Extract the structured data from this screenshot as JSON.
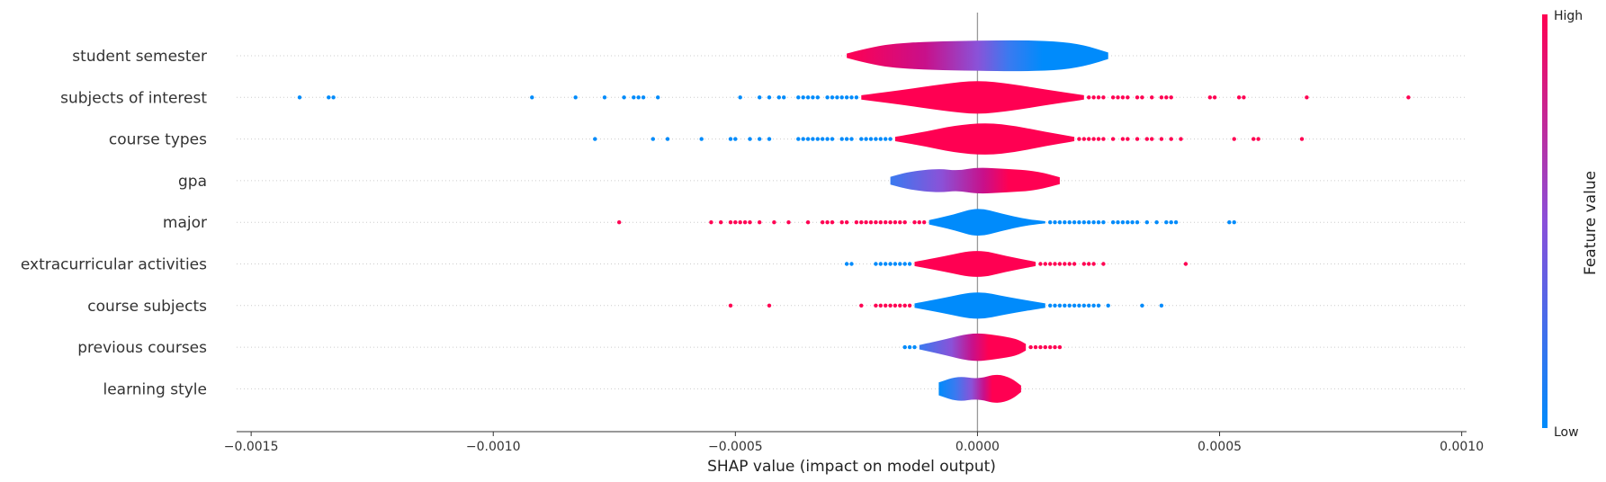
{
  "chart_data": {
    "type": "violin-summary",
    "xlabel": "SHAP value (impact on model output)",
    "xlim": [
      -0.00153,
      0.00101
    ],
    "xticks": [
      {
        "value": -0.0015,
        "label": "−0.0015"
      },
      {
        "value": -0.001,
        "label": "−0.0010"
      },
      {
        "value": -0.0005,
        "label": "−0.0005"
      },
      {
        "value": 0.0,
        "label": "0.0000"
      },
      {
        "value": 0.0005,
        "label": "0.0005"
      },
      {
        "value": 0.001,
        "label": "0.0010"
      }
    ],
    "colorbar": {
      "label": "Feature value",
      "high_label": "High",
      "low_label": "Low",
      "high_color": "#ff0052",
      "low_color": "#008bfb"
    },
    "features": [
      {
        "name": "student semester",
        "body": {
          "min": -0.00027,
          "max": 0.00027
        },
        "gradient": [
          [
            0,
            "#ff0052"
          ],
          [
            0.3,
            "#c8108a"
          ],
          [
            0.5,
            "#8a52d8"
          ],
          [
            0.62,
            "#3a7af0"
          ],
          [
            0.75,
            "#008bfb"
          ],
          [
            1,
            "#008bfb"
          ]
        ],
        "profile": [
          [
            -0.00027,
            0.1
          ],
          [
            -0.00023,
            0.33
          ],
          [
            -0.00018,
            0.55
          ],
          [
            -0.0001,
            0.66
          ],
          [
            0.0,
            0.7
          ],
          [
            8e-05,
            0.72
          ],
          [
            0.00016,
            0.68
          ],
          [
            0.00022,
            0.5
          ],
          [
            0.00027,
            0.15
          ]
        ],
        "high_points": [],
        "low_points": []
      },
      {
        "name": "subjects of interest",
        "body": {
          "min": -0.00024,
          "max": 0.00022
        },
        "gradient": [
          [
            0,
            "#ff0052"
          ],
          [
            1,
            "#ff0052"
          ]
        ],
        "profile": [
          [
            -0.00024,
            0.1
          ],
          [
            -0.00016,
            0.33
          ],
          [
            -7e-05,
            0.62
          ],
          [
            0.0,
            0.8
          ],
          [
            7e-05,
            0.62
          ],
          [
            0.00015,
            0.33
          ],
          [
            0.00022,
            0.1
          ]
        ],
        "low_points": [
          -0.0014,
          -0.00134,
          -0.00133,
          -0.00092,
          -0.00083,
          -0.00077,
          -0.00073,
          -0.00071,
          -0.0007,
          -0.00069,
          -0.00066,
          -0.00049,
          -0.00045,
          -0.00043,
          -0.00041,
          -0.0004,
          -0.00037,
          -0.00036,
          -0.00035,
          -0.00034,
          -0.00033,
          -0.00031,
          -0.0003,
          -0.00029,
          -0.00028,
          -0.00027,
          -0.00026,
          -0.00025
        ],
        "high_points": [
          0.00023,
          0.00024,
          0.00025,
          0.00026,
          0.00028,
          0.00029,
          0.0003,
          0.00031,
          0.00033,
          0.00034,
          0.00036,
          0.00038,
          0.00039,
          0.0004,
          0.00048,
          0.00049,
          0.00054,
          0.00055,
          0.00068,
          0.00089
        ]
      },
      {
        "name": "course types",
        "body": {
          "min": -0.00017,
          "max": 0.0002
        },
        "gradient": [
          [
            0,
            "#ff0052"
          ],
          [
            1,
            "#ff0052"
          ]
        ],
        "profile": [
          [
            -0.00017,
            0.1
          ],
          [
            -0.00011,
            0.33
          ],
          [
            -5e-05,
            0.62
          ],
          [
            2e-05,
            0.76
          ],
          [
            8e-05,
            0.6
          ],
          [
            0.00014,
            0.33
          ],
          [
            0.0002,
            0.1
          ]
        ],
        "low_points": [
          -0.00079,
          -0.00067,
          -0.00064,
          -0.00057,
          -0.00051,
          -0.0005,
          -0.00047,
          -0.00045,
          -0.00043,
          -0.00037,
          -0.00036,
          -0.00035,
          -0.00034,
          -0.00033,
          -0.00032,
          -0.00031,
          -0.0003,
          -0.00028,
          -0.00027,
          -0.00026,
          -0.00024,
          -0.00023,
          -0.00022,
          -0.00021,
          -0.0002,
          -0.00019,
          -0.00018
        ],
        "high_points": [
          0.00021,
          0.00022,
          0.00023,
          0.00024,
          0.00025,
          0.00026,
          0.00028,
          0.0003,
          0.00031,
          0.00033,
          0.00035,
          0.00036,
          0.00038,
          0.0004,
          0.00042,
          0.00053,
          0.00057,
          0.00058,
          0.00067
        ]
      },
      {
        "name": "gpa",
        "body": {
          "min": -0.00018,
          "max": 0.00017
        },
        "gradient": [
          [
            0,
            "#3a7af0"
          ],
          [
            0.3,
            "#8a52d8"
          ],
          [
            0.55,
            "#c8108a"
          ],
          [
            0.7,
            "#ff0052"
          ],
          [
            1,
            "#ff0052"
          ]
        ],
        "profile": [
          [
            -0.00018,
            0.18
          ],
          [
            -0.00014,
            0.42
          ],
          [
            -8e-05,
            0.56
          ],
          [
            -4e-05,
            0.46
          ],
          [
            0.0,
            0.62
          ],
          [
            6e-05,
            0.54
          ],
          [
            0.00012,
            0.46
          ],
          [
            0.00017,
            0.16
          ]
        ],
        "high_points": [],
        "low_points": []
      },
      {
        "name": "major",
        "body": {
          "min": -0.0001,
          "max": 0.00014
        },
        "gradient": [
          [
            0,
            "#008bfb"
          ],
          [
            1,
            "#008bfb"
          ]
        ],
        "profile": [
          [
            -0.0001,
            0.1
          ],
          [
            -5e-05,
            0.35
          ],
          [
            0.0,
            0.7
          ],
          [
            5e-05,
            0.4
          ],
          [
            0.0001,
            0.15
          ],
          [
            0.00014,
            0.05
          ]
        ],
        "high_points": [
          -0.00074,
          -0.00055,
          -0.00053,
          -0.00051,
          -0.0005,
          -0.00049,
          -0.00048,
          -0.00047,
          -0.00045,
          -0.00042,
          -0.00039,
          -0.00035,
          -0.00032,
          -0.00031,
          -0.0003,
          -0.00028,
          -0.00027,
          -0.00025,
          -0.00024,
          -0.00023,
          -0.00022,
          -0.00021,
          -0.0002,
          -0.00019,
          -0.00018,
          -0.00017,
          -0.00016,
          -0.00015,
          -0.00013,
          -0.00012,
          -0.00011
        ],
        "low_points": [
          0.00015,
          0.00016,
          0.00017,
          0.00018,
          0.00019,
          0.0002,
          0.00021,
          0.00022,
          0.00023,
          0.00024,
          0.00025,
          0.00026,
          0.00028,
          0.00029,
          0.0003,
          0.00031,
          0.00032,
          0.00033,
          0.00035,
          0.00037,
          0.00039,
          0.0004,
          0.00041,
          0.00052,
          0.00053
        ]
      },
      {
        "name": "extracurricular activities",
        "body": {
          "min": -0.00013,
          "max": 0.00012
        },
        "gradient": [
          [
            0,
            "#ff0052"
          ],
          [
            1,
            "#ff0052"
          ]
        ],
        "profile": [
          [
            -0.00013,
            0.1
          ],
          [
            -7e-05,
            0.35
          ],
          [
            0.0,
            0.68
          ],
          [
            6e-05,
            0.36
          ],
          [
            0.00012,
            0.1
          ]
        ],
        "low_points": [
          -0.00027,
          -0.00026,
          -0.00021,
          -0.0002,
          -0.00019,
          -0.00018,
          -0.00017,
          -0.00016,
          -0.00015,
          -0.00014
        ],
        "high_points": [
          0.00013,
          0.00014,
          0.00015,
          0.00016,
          0.00017,
          0.00018,
          0.00019,
          0.0002,
          0.00022,
          0.00023,
          0.00024,
          0.00026,
          0.00043
        ]
      },
      {
        "name": "course subjects",
        "body": {
          "min": -0.00013,
          "max": 0.00014
        },
        "gradient": [
          [
            0,
            "#008bfb"
          ],
          [
            1,
            "#008bfb"
          ]
        ],
        "profile": [
          [
            -0.00013,
            0.1
          ],
          [
            -7e-05,
            0.35
          ],
          [
            0.0,
            0.68
          ],
          [
            6e-05,
            0.4
          ],
          [
            0.00014,
            0.1
          ]
        ],
        "high_points": [
          -0.00051,
          -0.00043,
          -0.00024,
          -0.00021,
          -0.0002,
          -0.00019,
          -0.00018,
          -0.00017,
          -0.00016,
          -0.00015,
          -0.00014
        ],
        "low_points": [
          0.00015,
          0.00016,
          0.00017,
          0.00018,
          0.00019,
          0.0002,
          0.00021,
          0.00022,
          0.00023,
          0.00024,
          0.00025,
          0.00027,
          0.00034,
          0.00038
        ]
      },
      {
        "name": "previous courses",
        "body": {
          "min": -0.00012,
          "max": 0.0001
        },
        "gradient": [
          [
            0,
            "#3a7af0"
          ],
          [
            0.3,
            "#8a52d8"
          ],
          [
            0.5,
            "#c8108a"
          ],
          [
            0.65,
            "#ff0052"
          ],
          [
            1,
            "#ff0052"
          ]
        ],
        "profile": [
          [
            -0.00012,
            0.1
          ],
          [
            -7e-05,
            0.35
          ],
          [
            -1e-05,
            0.68
          ],
          [
            4e-05,
            0.55
          ],
          [
            8e-05,
            0.4
          ],
          [
            0.0001,
            0.15
          ]
        ],
        "low_points": [
          -0.00015,
          -0.00014,
          -0.00013
        ],
        "high_points": [
          0.00011,
          0.00012,
          0.00013,
          0.00014,
          0.00015,
          0.00016,
          0.00017
        ]
      },
      {
        "name": "learning style",
        "body": {
          "min": -8e-05,
          "max": 9e-05
        },
        "gradient": [
          [
            0,
            "#008bfb"
          ],
          [
            0.2,
            "#3a7af0"
          ],
          [
            0.4,
            "#8a52d8"
          ],
          [
            0.55,
            "#c8108a"
          ],
          [
            0.65,
            "#ff0052"
          ],
          [
            1,
            "#ff0052"
          ]
        ],
        "profile": [
          [
            -8e-05,
            0.3
          ],
          [
            -4e-05,
            0.6
          ],
          [
            0.0,
            0.45
          ],
          [
            4e-05,
            0.7
          ],
          [
            7e-05,
            0.5
          ],
          [
            9e-05,
            0.15
          ]
        ],
        "high_points": [],
        "low_points": []
      }
    ]
  }
}
